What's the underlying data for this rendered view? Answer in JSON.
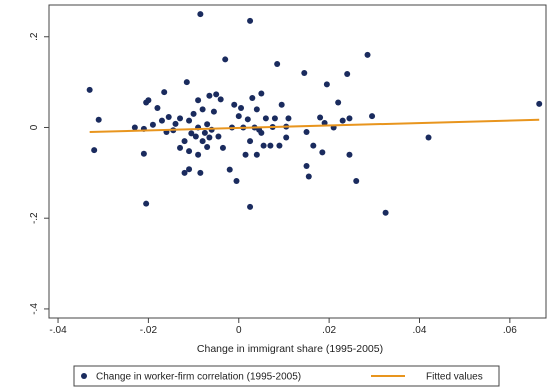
{
  "chart_data": {
    "type": "scatter",
    "xlabel": "Change in immigrant share (1995-2005)",
    "ylabel": "",
    "xlim": [
      -0.042,
      0.068
    ],
    "ylim": [
      -0.42,
      0.27
    ],
    "x_ticks": [
      {
        "value": -0.04,
        "label": "-.04"
      },
      {
        "value": -0.02,
        "label": "-.02"
      },
      {
        "value": 0,
        "label": "0"
      },
      {
        "value": 0.02,
        "label": ".02"
      },
      {
        "value": 0.04,
        "label": ".04"
      },
      {
        "value": 0.06,
        "label": ".06"
      }
    ],
    "y_ticks": [
      {
        "value": -0.4,
        "label": "-.4"
      },
      {
        "value": -0.2,
        "label": "-.2"
      },
      {
        "value": 0,
        "label": "0"
      },
      {
        "value": 0.2,
        "label": ".2"
      }
    ],
    "grid": false,
    "legend_position": "bottom",
    "colors": {
      "scatter": "#1a2b5e",
      "fitted": "#e8951e",
      "frame": "#444444"
    },
    "series": [
      {
        "name": "Change in worker-firm correlation (1995-2005)",
        "kind": "scatter",
        "points": [
          {
            "x": -0.033,
            "y": 0.083
          },
          {
            "x": -0.032,
            "y": -0.05
          },
          {
            "x": -0.031,
            "y": 0.017
          },
          {
            "x": -0.023,
            "y": 0.0
          },
          {
            "x": -0.021,
            "y": -0.058
          },
          {
            "x": -0.021,
            "y": -0.003
          },
          {
            "x": -0.0205,
            "y": 0.055
          },
          {
            "x": -0.0205,
            "y": -0.168
          },
          {
            "x": -0.02,
            "y": 0.06
          },
          {
            "x": -0.019,
            "y": 0.006
          },
          {
            "x": -0.018,
            "y": 0.043
          },
          {
            "x": -0.017,
            "y": 0.015
          },
          {
            "x": -0.0165,
            "y": 0.078
          },
          {
            "x": -0.016,
            "y": -0.01
          },
          {
            "x": -0.0155,
            "y": 0.023
          },
          {
            "x": -0.0145,
            "y": -0.006
          },
          {
            "x": -0.014,
            "y": 0.008
          },
          {
            "x": -0.013,
            "y": -0.045
          },
          {
            "x": -0.013,
            "y": 0.02
          },
          {
            "x": -0.012,
            "y": -0.1
          },
          {
            "x": -0.012,
            "y": -0.03
          },
          {
            "x": -0.0115,
            "y": 0.1
          },
          {
            "x": -0.011,
            "y": -0.092
          },
          {
            "x": -0.011,
            "y": 0.015
          },
          {
            "x": -0.011,
            "y": -0.052
          },
          {
            "x": -0.0105,
            "y": -0.013
          },
          {
            "x": -0.01,
            "y": 0.03
          },
          {
            "x": -0.0095,
            "y": -0.02
          },
          {
            "x": -0.009,
            "y": 0.0
          },
          {
            "x": -0.009,
            "y": -0.06
          },
          {
            "x": -0.009,
            "y": 0.06
          },
          {
            "x": -0.0085,
            "y": -0.1
          },
          {
            "x": -0.0085,
            "y": 0.25
          },
          {
            "x": -0.008,
            "y": -0.03
          },
          {
            "x": -0.008,
            "y": 0.04
          },
          {
            "x": -0.0075,
            "y": -0.012
          },
          {
            "x": -0.007,
            "y": -0.043
          },
          {
            "x": -0.007,
            "y": 0.007
          },
          {
            "x": -0.0065,
            "y": 0.07
          },
          {
            "x": -0.0065,
            "y": -0.022
          },
          {
            "x": -0.006,
            "y": -0.005
          },
          {
            "x": -0.0055,
            "y": 0.035
          },
          {
            "x": -0.005,
            "y": 0.073
          },
          {
            "x": -0.0045,
            "y": -0.02
          },
          {
            "x": -0.004,
            "y": 0.062
          },
          {
            "x": -0.0035,
            "y": -0.045
          },
          {
            "x": -0.003,
            "y": 0.15
          },
          {
            "x": -0.002,
            "y": -0.093
          },
          {
            "x": -0.0015,
            "y": 0.0
          },
          {
            "x": -0.001,
            "y": 0.05
          },
          {
            "x": -0.0005,
            "y": -0.118
          },
          {
            "x": 0.0,
            "y": 0.025
          },
          {
            "x": 0.0005,
            "y": 0.043
          },
          {
            "x": 0.001,
            "y": 0.0
          },
          {
            "x": 0.0015,
            "y": -0.06
          },
          {
            "x": 0.002,
            "y": 0.018
          },
          {
            "x": 0.0025,
            "y": -0.03
          },
          {
            "x": 0.0025,
            "y": 0.235
          },
          {
            "x": 0.0025,
            "y": -0.175
          },
          {
            "x": 0.003,
            "y": 0.065
          },
          {
            "x": 0.0035,
            "y": 0.0
          },
          {
            "x": 0.004,
            "y": 0.04
          },
          {
            "x": 0.004,
            "y": -0.06
          },
          {
            "x": 0.0045,
            "y": -0.005
          },
          {
            "x": 0.005,
            "y": 0.075
          },
          {
            "x": 0.005,
            "y": -0.012
          },
          {
            "x": 0.0055,
            "y": -0.04
          },
          {
            "x": 0.006,
            "y": 0.02
          },
          {
            "x": 0.007,
            "y": -0.04
          },
          {
            "x": 0.0075,
            "y": 0.001
          },
          {
            "x": 0.008,
            "y": 0.02
          },
          {
            "x": 0.0085,
            "y": 0.14
          },
          {
            "x": 0.009,
            "y": -0.04
          },
          {
            "x": 0.0095,
            "y": 0.05
          },
          {
            "x": 0.0105,
            "y": -0.022
          },
          {
            "x": 0.0105,
            "y": 0.002
          },
          {
            "x": 0.011,
            "y": 0.02
          },
          {
            "x": 0.0145,
            "y": 0.12
          },
          {
            "x": 0.015,
            "y": -0.01
          },
          {
            "x": 0.015,
            "y": -0.085
          },
          {
            "x": 0.0155,
            "y": -0.108
          },
          {
            "x": 0.0165,
            "y": -0.04
          },
          {
            "x": 0.018,
            "y": 0.022
          },
          {
            "x": 0.0185,
            "y": -0.055
          },
          {
            "x": 0.019,
            "y": 0.01
          },
          {
            "x": 0.0195,
            "y": 0.095
          },
          {
            "x": 0.021,
            "y": 0.0
          },
          {
            "x": 0.022,
            "y": 0.055
          },
          {
            "x": 0.023,
            "y": 0.015
          },
          {
            "x": 0.024,
            "y": 0.118
          },
          {
            "x": 0.0245,
            "y": 0.02
          },
          {
            "x": 0.0245,
            "y": -0.06
          },
          {
            "x": 0.026,
            "y": -0.118
          },
          {
            "x": 0.0285,
            "y": 0.16
          },
          {
            "x": 0.0295,
            "y": 0.025
          },
          {
            "x": 0.0325,
            "y": -0.188
          },
          {
            "x": 0.042,
            "y": -0.022
          },
          {
            "x": 0.0665,
            "y": 0.052
          }
        ]
      },
      {
        "name": "Fitted values",
        "kind": "line",
        "points": [
          {
            "x": -0.033,
            "y": -0.01
          },
          {
            "x": 0.0665,
            "y": 0.017
          }
        ]
      }
    ]
  }
}
